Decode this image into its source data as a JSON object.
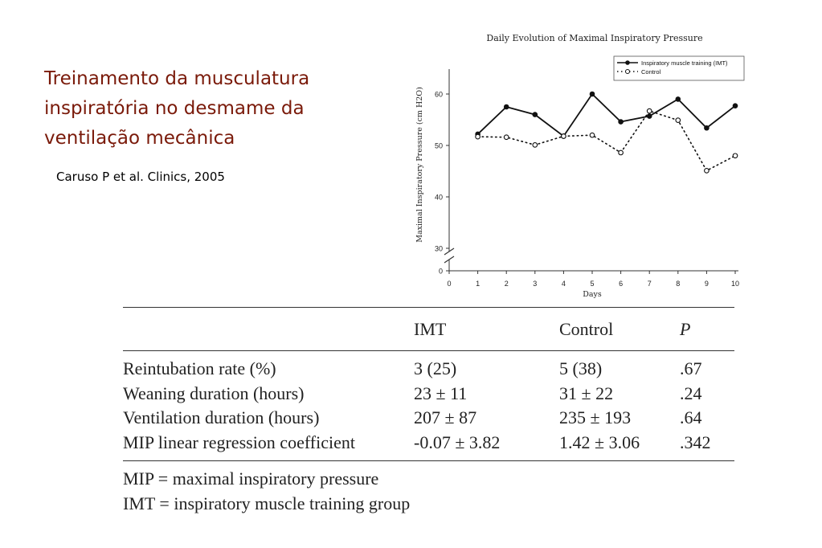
{
  "slide": {
    "title_lines": [
      "Treinamento da musculatura",
      "inspiratória no desmame da",
      "ventilação mecânica"
    ],
    "citation": "Caruso P et al. Clinics, 2005"
  },
  "chart_data": {
    "type": "line",
    "title": "Daily Evolution of Maximal Inspiratory Pressure",
    "xlabel": "Days",
    "ylabel": "Maximal Inspiratory Pressure (cm H2O)",
    "x": [
      1,
      2,
      3,
      4,
      5,
      6,
      7,
      8,
      9,
      10
    ],
    "x_ticks": [
      0,
      1,
      2,
      3,
      4,
      5,
      6,
      7,
      8,
      9,
      10
    ],
    "y_ticks": [
      0,
      30,
      40,
      50,
      60
    ],
    "y_axis_break": "between 0 and 30",
    "xlim": [
      0,
      10
    ],
    "ylim": [
      30,
      63
    ],
    "grid": false,
    "legend_position": "top-right",
    "series": [
      {
        "name": "Inspiratory muscle training (IMT)",
        "style": "solid",
        "marker": "filled-circle",
        "values": [
          52.2,
          57.5,
          56.0,
          51.8,
          60.0,
          54.6,
          55.7,
          59.0,
          53.4,
          57.7
        ]
      },
      {
        "name": "Control",
        "style": "dotted",
        "marker": "open-circle",
        "values": [
          51.7,
          51.6,
          50.1,
          51.8,
          52.0,
          48.6,
          56.7,
          54.9,
          45.1,
          48.0
        ]
      }
    ],
    "colors": {
      "line": "#111111",
      "axis": "#333333"
    }
  },
  "table": {
    "headers": [
      "",
      "IMT",
      "Control",
      "P"
    ],
    "rows": [
      [
        "Reintubation rate (%)",
        "3 (25)",
        "5 (38)",
        ".67"
      ],
      [
        "Weaning duration (hours)",
        "23 ± 11",
        "31 ± 22",
        ".24"
      ],
      [
        "Ventilation duration (hours)",
        "207 ± 87",
        "235 ± 193",
        ".64"
      ],
      [
        "MIP linear regression coefficient",
        "-0.07 ± 3.82",
        "1.42 ± 3.06",
        ".342"
      ]
    ],
    "notes": [
      "MIP = maximal inspiratory pressure",
      "IMT = inspiratory muscle training group"
    ]
  }
}
